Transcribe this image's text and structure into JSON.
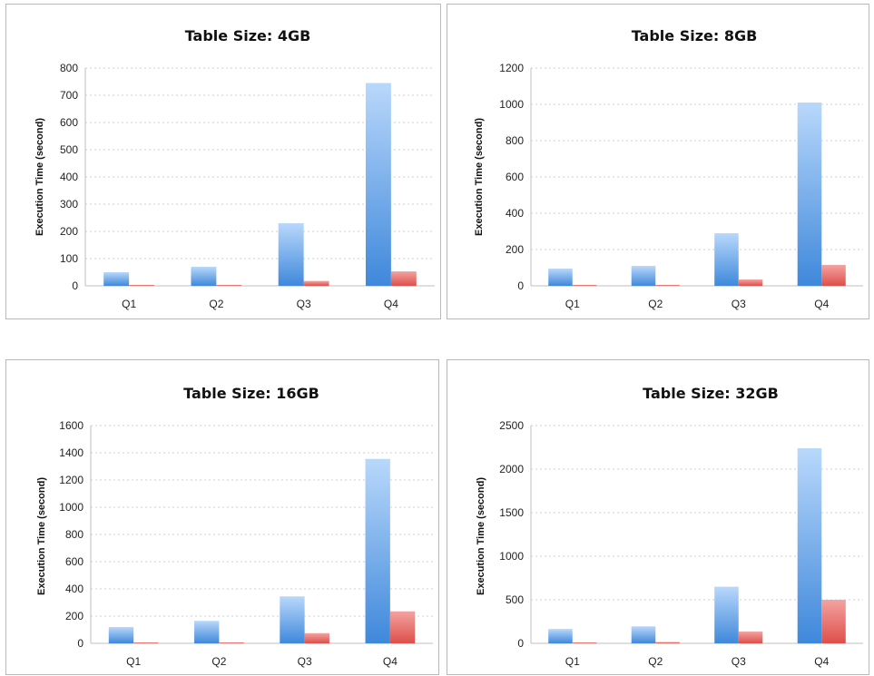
{
  "chart_data": [
    {
      "type": "bar",
      "title": "Table Size: 4GB",
      "xlabel": "",
      "ylabel": "Execution Time (second)",
      "categories": [
        "Q1",
        "Q2",
        "Q3",
        "Q4"
      ],
      "ylim": [
        0,
        800
      ],
      "yticks": [
        0,
        100,
        200,
        300,
        400,
        500,
        600,
        700,
        800
      ],
      "series": [
        {
          "values": [
            50,
            70,
            230,
            745
          ],
          "color": "#5a9be0"
        },
        {
          "values": [
            3,
            3,
            18,
            53
          ],
          "color": "#e05a55"
        }
      ],
      "grid": true,
      "legend": "none"
    },
    {
      "type": "bar",
      "title": "Table Size: 8GB",
      "xlabel": "",
      "ylabel": "Execution Time (second)",
      "categories": [
        "Q1",
        "Q2",
        "Q3",
        "Q4"
      ],
      "ylim": [
        0,
        1200
      ],
      "yticks": [
        0,
        200,
        400,
        600,
        800,
        1000,
        1200
      ],
      "series": [
        {
          "values": [
            95,
            110,
            290,
            1010
          ],
          "color": "#5a9be0"
        },
        {
          "values": [
            5,
            5,
            35,
            115
          ],
          "color": "#e05a55"
        }
      ],
      "grid": true,
      "legend": "none"
    },
    {
      "type": "bar",
      "title": "Table Size: 16GB",
      "xlabel": "",
      "ylabel": "Execution Time (second)",
      "categories": [
        "Q1",
        "Q2",
        "Q3",
        "Q4"
      ],
      "ylim": [
        0,
        1600
      ],
      "yticks": [
        0,
        200,
        400,
        600,
        800,
        1000,
        1200,
        1400,
        1600
      ],
      "series": [
        {
          "values": [
            120,
            165,
            345,
            1355
          ],
          "color": "#5a9be0"
        },
        {
          "values": [
            5,
            5,
            75,
            235
          ],
          "color": "#e05a55"
        }
      ],
      "grid": true,
      "legend": "none"
    },
    {
      "type": "bar",
      "title": "Table Size: 32GB",
      "xlabel": "",
      "ylabel": "Execution Time (second)",
      "categories": [
        "Q1",
        "Q2",
        "Q3",
        "Q4"
      ],
      "ylim": [
        0,
        2500
      ],
      "yticks": [
        0,
        500,
        1000,
        1500,
        2000,
        2500
      ],
      "series": [
        {
          "values": [
            165,
            195,
            650,
            2240
          ],
          "color": "#5a9be0"
        },
        {
          "values": [
            10,
            15,
            135,
            500
          ],
          "color": "#e05a55"
        }
      ],
      "grid": true,
      "legend": "none"
    }
  ]
}
